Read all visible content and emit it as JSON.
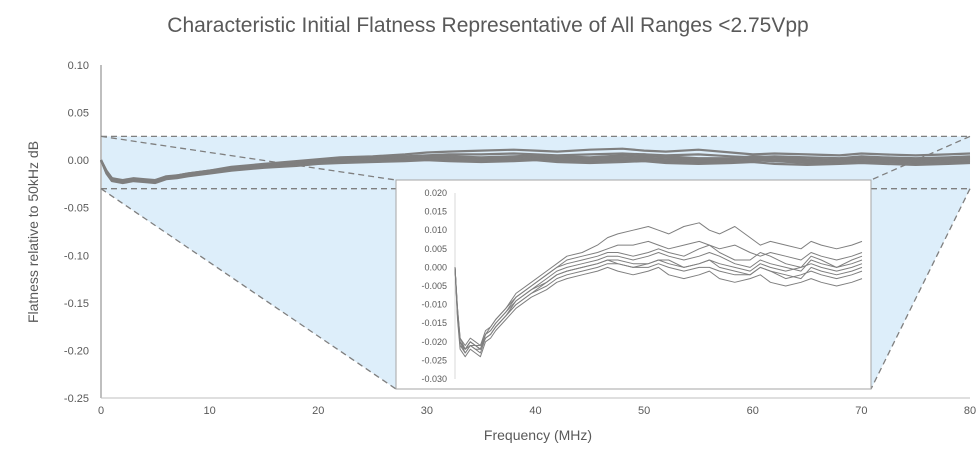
{
  "chart_data": {
    "type": "line",
    "title": "Characteristic Initial Flatness Representative of All Ranges <2.75Vpp",
    "xlabel": "Frequency (MHz)",
    "ylabel": "Flatness relative to 50kHz dB",
    "xlim": [
      0,
      80
    ],
    "ylim": [
      -0.25,
      0.1
    ],
    "x_ticks": [
      "0",
      "10",
      "20",
      "30",
      "40",
      "50",
      "60",
      "70",
      "80"
    ],
    "y_ticks": [
      "0.10",
      "0.05",
      "0.00",
      "-0.05",
      "-0.10",
      "-0.15",
      "-0.20",
      "-0.25"
    ],
    "grid": false,
    "legend": "none",
    "series_color": "#7f7f7f",
    "zoom_region_color": "#ddeefa",
    "zoom_region_ylim": [
      -0.03,
      0.025
    ],
    "x": [
      0,
      0.5,
      1,
      2,
      3,
      4,
      5,
      6,
      7,
      8,
      10,
      12,
      15,
      18,
      20,
      22,
      25,
      28,
      30,
      32,
      35,
      38,
      40,
      42,
      45,
      48,
      50,
      52,
      55,
      58,
      60,
      62,
      65,
      68,
      70,
      72,
      75,
      78,
      80
    ],
    "series": [
      {
        "values": [
          0.0,
          -0.012,
          -0.02,
          -0.022,
          -0.02,
          -0.021,
          -0.022,
          -0.018,
          -0.017,
          -0.015,
          -0.012,
          -0.009,
          -0.006,
          -0.004,
          -0.002,
          -0.001,
          0.0,
          0.001,
          0.002,
          0.002,
          0.001,
          0.001,
          0.002,
          0.002,
          0.0,
          0.001,
          0.002,
          0.001,
          0.0,
          -0.001,
          0.001,
          0.0,
          -0.001,
          0.0,
          0.001,
          0.0,
          -0.001,
          0.0,
          0.001
        ]
      },
      {
        "values": [
          0.0,
          -0.013,
          -0.021,
          -0.023,
          -0.021,
          -0.022,
          -0.023,
          -0.019,
          -0.018,
          -0.016,
          -0.013,
          -0.01,
          -0.007,
          -0.005,
          -0.003,
          -0.002,
          -0.001,
          0.0,
          0.001,
          0.001,
          0.0,
          0.0,
          0.001,
          0.0,
          -0.001,
          0.0,
          0.0,
          -0.001,
          -0.002,
          -0.002,
          0.0,
          -0.001,
          -0.003,
          -0.002,
          -0.001,
          -0.002,
          -0.003,
          -0.002,
          -0.001
        ]
      },
      {
        "values": [
          0.0,
          -0.011,
          -0.019,
          -0.021,
          -0.019,
          -0.02,
          -0.021,
          -0.017,
          -0.016,
          -0.014,
          -0.011,
          -0.007,
          -0.004,
          -0.001,
          0.001,
          0.003,
          0.004,
          0.006,
          0.008,
          0.009,
          0.01,
          0.011,
          0.01,
          0.009,
          0.011,
          0.012,
          0.01,
          0.009,
          0.011,
          0.008,
          0.006,
          0.007,
          0.006,
          0.005,
          0.007,
          0.006,
          0.005,
          0.006,
          0.007
        ]
      },
      {
        "values": [
          0.0,
          -0.014,
          -0.022,
          -0.024,
          -0.022,
          -0.023,
          -0.024,
          -0.02,
          -0.019,
          -0.017,
          -0.014,
          -0.011,
          -0.008,
          -0.006,
          -0.004,
          -0.003,
          -0.002,
          -0.001,
          0.0,
          -0.001,
          -0.002,
          -0.001,
          0.0,
          -0.002,
          -0.003,
          -0.002,
          -0.001,
          -0.003,
          -0.004,
          -0.003,
          -0.002,
          -0.004,
          -0.005,
          -0.004,
          -0.003,
          -0.004,
          -0.005,
          -0.004,
          -0.003
        ]
      },
      {
        "values": [
          0.0,
          -0.012,
          -0.02,
          -0.022,
          -0.021,
          -0.021,
          -0.022,
          -0.018,
          -0.017,
          -0.015,
          -0.012,
          -0.008,
          -0.005,
          -0.002,
          0.0,
          0.002,
          0.003,
          0.004,
          0.005,
          0.006,
          0.006,
          0.007,
          0.006,
          0.005,
          0.006,
          0.007,
          0.006,
          0.005,
          0.006,
          0.004,
          0.003,
          0.004,
          0.003,
          0.002,
          0.004,
          0.003,
          0.002,
          0.003,
          0.004
        ]
      },
      {
        "values": [
          0.0,
          -0.012,
          -0.02,
          -0.023,
          -0.021,
          -0.022,
          -0.022,
          -0.019,
          -0.018,
          -0.016,
          -0.013,
          -0.009,
          -0.006,
          -0.003,
          -0.001,
          0.0,
          0.001,
          0.002,
          0.003,
          0.003,
          0.002,
          0.003,
          0.004,
          0.003,
          0.002,
          0.003,
          0.004,
          0.003,
          0.001,
          0.0,
          0.002,
          0.001,
          0.0,
          -0.001,
          0.002,
          0.001,
          0.0,
          0.001,
          0.002
        ]
      },
      {
        "values": [
          0.0,
          -0.011,
          -0.019,
          -0.022,
          -0.02,
          -0.021,
          -0.021,
          -0.018,
          -0.016,
          -0.014,
          -0.011,
          -0.008,
          -0.005,
          -0.002,
          0.0,
          0.001,
          0.002,
          0.003,
          0.004,
          0.004,
          0.003,
          0.004,
          0.005,
          0.004,
          0.003,
          0.005,
          0.006,
          0.004,
          0.002,
          0.002,
          0.004,
          0.003,
          0.001,
          0.0,
          0.003,
          0.002,
          0.0,
          0.002,
          0.003
        ]
      },
      {
        "values": [
          0.0,
          -0.013,
          -0.021,
          -0.022,
          -0.02,
          -0.021,
          -0.022,
          -0.019,
          -0.018,
          -0.016,
          -0.013,
          -0.01,
          -0.007,
          -0.004,
          -0.002,
          -0.001,
          0.0,
          0.001,
          0.002,
          0.001,
          0.0,
          0.001,
          0.002,
          0.001,
          0.0,
          0.001,
          0.002,
          0.0,
          -0.001,
          -0.002,
          0.0,
          -0.001,
          -0.002,
          -0.003,
          0.0,
          -0.001,
          -0.002,
          -0.001,
          0.0
        ]
      }
    ],
    "inset": {
      "xlim": [
        0,
        80
      ],
      "ylim": [
        -0.03,
        0.02
      ],
      "y_ticks": [
        "0.020",
        "0.015",
        "0.010",
        "0.005",
        "0.000",
        "-0.005",
        "-0.010",
        "-0.015",
        "-0.020",
        "-0.025",
        "-0.030"
      ]
    }
  }
}
